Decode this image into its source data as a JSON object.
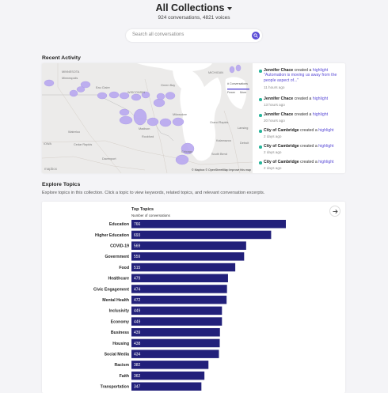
{
  "header": {
    "title": "All Collections",
    "subtitle": "924 conversations, 4821 voices",
    "search_placeholder": "Search all conversations"
  },
  "recent_activity": {
    "title": "Recent Activity",
    "map": {
      "labels": [
        "MINNESOTA",
        "WISCONSIN",
        "MICHIGAN",
        "IOWA",
        "Minneapolis",
        "Eau Claire",
        "Green Bay",
        "Waterloo",
        "Cedar Rapids",
        "Davenport",
        "Milwaukee",
        "Madison",
        "Rockford",
        "Chicago",
        "Grand Rapids",
        "Lansing",
        "Kalamazoo",
        "South Bend",
        "Detroit"
      ],
      "attribution": "© Mapbox © OpenStreetMap Improve this map",
      "logo": "mapbox",
      "legend": {
        "label": "# Conversations",
        "low": "Fewer",
        "high": "More"
      }
    },
    "feed": [
      {
        "user": "Jennifer Chace",
        "action": "created a",
        "object": "highlight",
        "quote": "\"Automation is moving us away from the people aspect of...\"",
        "time": "11 hours ago"
      },
      {
        "user": "Jennifer Chace",
        "action": "created a",
        "object": "highlight",
        "quote": "",
        "time": "13 hours ago"
      },
      {
        "user": "Jennifer Chace",
        "action": "created a",
        "object": "highlight",
        "quote": "",
        "time": "20 hours ago"
      },
      {
        "user": "City of Cambridge",
        "action": "created a",
        "object": "highlight",
        "quote": "",
        "time": "2 days ago"
      },
      {
        "user": "City of Cambridge",
        "action": "created a",
        "object": "highlight",
        "quote": "",
        "time": "2 days ago"
      },
      {
        "user": "City of Cambridge",
        "action": "created a",
        "object": "highlight",
        "quote": "",
        "time": "2 days ago"
      }
    ]
  },
  "explore": {
    "title": "Explore Topics",
    "description": "Explore topics in this collection. Click a topic to view keywords, related topics, and relevant conversation excerpts."
  },
  "chart_data": {
    "type": "bar",
    "orientation": "horizontal",
    "title": "Top Topics",
    "subtitle": "Number of conversations",
    "categories": [
      "Education",
      "Higher Education",
      "COVID-19",
      "Government",
      "Food",
      "Healthcare",
      "Civic Engagement",
      "Mental Health",
      "Inclusivity",
      "Economy",
      "Business",
      "Housing",
      "Social Media",
      "Racism",
      "Faith",
      "Transportation"
    ],
    "values": [
      766,
      693,
      569,
      559,
      515,
      479,
      474,
      472,
      449,
      449,
      439,
      438,
      434,
      382,
      362,
      347
    ],
    "bar_color": "#22207a",
    "label_color": "#ffffff"
  },
  "colors": {
    "accent": "#5a4bd6",
    "feed_dot": "#27b59a",
    "bubble": "#b9a8f0"
  }
}
